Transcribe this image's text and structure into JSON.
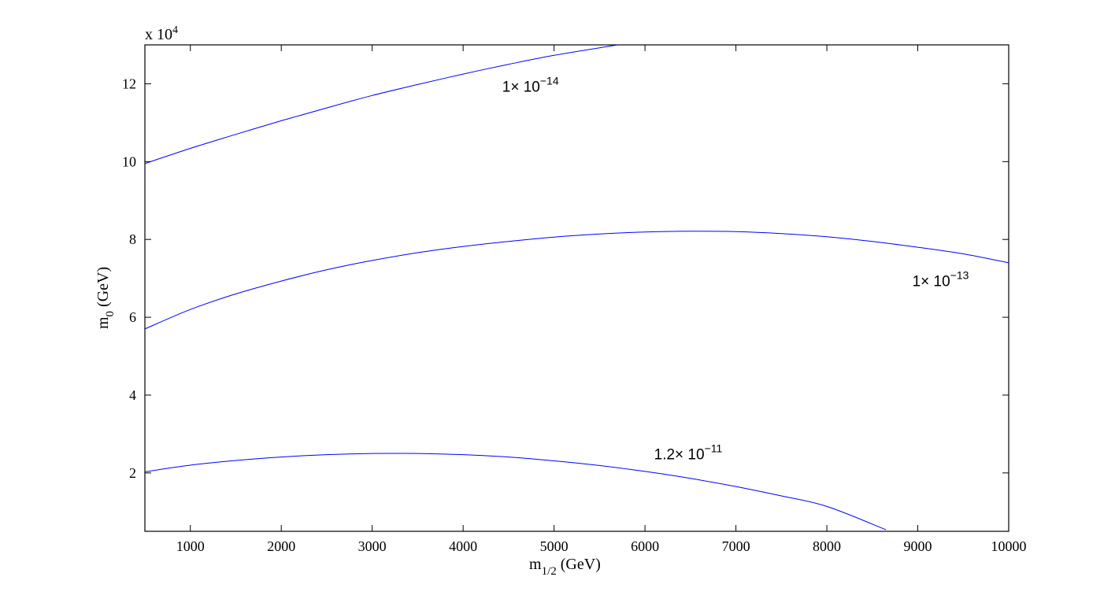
{
  "chart_data": {
    "type": "line",
    "title": "",
    "xlabel": {
      "main": "m",
      "sub": "1/2",
      "unit": " (GeV)"
    },
    "ylabel": {
      "main": "m",
      "sub": "0",
      "unit": " (GeV)"
    },
    "xlim": [
      500,
      10000
    ],
    "ylim": [
      5000,
      130000
    ],
    "y_scale_label": {
      "prefix": "x 10",
      "exponent": "4"
    },
    "x_ticks": [
      1000,
      2000,
      3000,
      4000,
      5000,
      6000,
      7000,
      8000,
      9000,
      10000
    ],
    "x_tick_labels": [
      "1000",
      "2000",
      "3000",
      "4000",
      "5000",
      "6000",
      "7000",
      "8000",
      "9000",
      "10000"
    ],
    "y_ticks": [
      20000,
      40000,
      60000,
      80000,
      100000,
      120000
    ],
    "y_tick_labels": [
      "2",
      "4",
      "6",
      "8",
      "10",
      "12"
    ],
    "grid": false,
    "legend": "none",
    "series_color": "#0000ff",
    "series": [
      {
        "x": [
          500,
          1000,
          1500,
          2000,
          2500,
          3000,
          3500,
          4000,
          4500,
          5000,
          5700
        ],
        "y": [
          99500,
          103400,
          107000,
          110500,
          113800,
          117000,
          119800,
          122500,
          125000,
          127300,
          130000
        ]
      },
      {
        "x": [
          500,
          1000,
          1500,
          2000,
          2500,
          3000,
          3500,
          4000,
          4500,
          5000,
          5500,
          6000,
          6500,
          7000,
          7500,
          8000,
          8500,
          9000,
          9500,
          10000
        ],
        "y": [
          57000,
          62000,
          66000,
          69300,
          72200,
          74600,
          76600,
          78200,
          79500,
          80600,
          81400,
          81900,
          82100,
          82000,
          81500,
          80700,
          79500,
          78000,
          76300,
          74000
        ]
      },
      {
        "x": [
          500,
          1000,
          1500,
          2000,
          2500,
          3000,
          3500,
          4000,
          4500,
          5000,
          5500,
          6000,
          6500,
          7000,
          7500,
          8000,
          8650
        ],
        "y": [
          20300,
          22000,
          23200,
          24100,
          24700,
          25000,
          25000,
          24700,
          24100,
          23100,
          21900,
          20400,
          18600,
          16500,
          14100,
          11400,
          5400
        ]
      }
    ],
    "annotations": [
      {
        "text": "1× 10",
        "exponent": "−14",
        "x": 4430,
        "y": 118000
      },
      {
        "text": "1× 10",
        "exponent": "−13",
        "x": 8940,
        "y": 68000
      },
      {
        "text": "1.2× 10",
        "exponent": "−11",
        "x": 6100,
        "y": 23500
      }
    ]
  }
}
